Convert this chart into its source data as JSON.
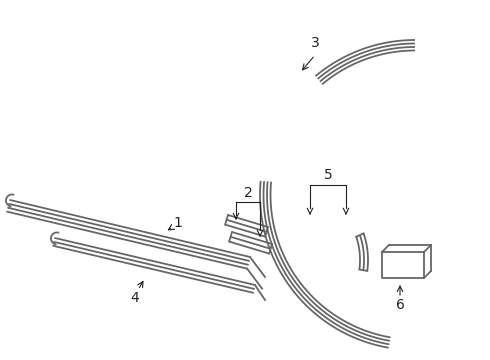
{
  "bg_color": "#ffffff",
  "line_color": "#666666",
  "label_color": "#222222",
  "label_fontsize": 10,
  "figsize": [
    4.9,
    3.6
  ],
  "dpi": 100
}
